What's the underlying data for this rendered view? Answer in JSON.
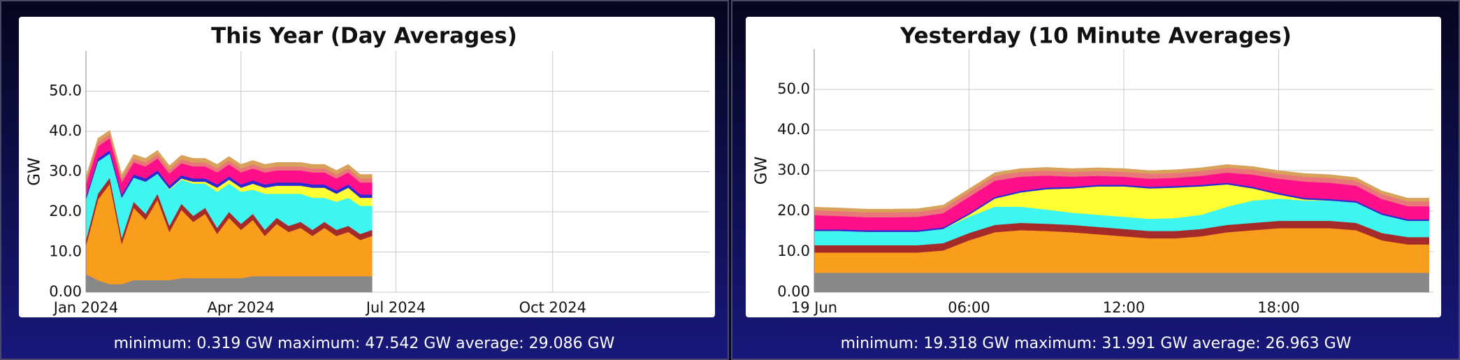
{
  "chart_data": [
    {
      "type": "area",
      "stacked": true,
      "title": "This Year (Day Averages)",
      "ylabel": "GW",
      "summary": "minimum: 0.319 GW maximum: 47.542 GW average: 29.086 GW",
      "x": [
        0,
        7,
        14,
        21,
        28,
        35,
        42,
        49,
        56,
        63,
        70,
        77,
        84,
        91,
        98,
        105,
        112,
        119,
        126,
        133,
        140,
        147,
        154,
        161,
        168
      ],
      "xlim": [
        0,
        366
      ],
      "xticks": [
        {
          "value": 0,
          "label": "Jan 2024"
        },
        {
          "value": 91,
          "label": "Apr 2024"
        },
        {
          "value": 182,
          "label": "Jul 2024"
        },
        {
          "value": 274,
          "label": "Oct 2024"
        }
      ],
      "ylim": [
        0,
        60
      ],
      "yticks": [
        {
          "value": 0,
          "label": "0.00"
        },
        {
          "value": 10,
          "label": "10.0"
        },
        {
          "value": 20,
          "label": "20.0"
        },
        {
          "value": 30,
          "label": "30.0"
        },
        {
          "value": 40,
          "label": "40.0"
        },
        {
          "value": 50,
          "label": "50.0"
        }
      ],
      "grid": true,
      "series": [
        {
          "color": "#888888",
          "values": [
            4.5,
            3,
            2,
            2,
            3,
            3,
            3,
            3,
            3.5,
            3.5,
            3.5,
            3.5,
            3.5,
            3.5,
            4,
            4,
            4,
            4,
            4,
            4,
            4,
            4,
            4,
            4,
            4
          ]
        },
        {
          "color": "#f99d1c",
          "values": [
            7,
            20,
            25,
            10,
            18,
            15,
            20,
            12,
            17,
            14,
            16,
            11,
            15,
            12,
            14,
            10,
            13,
            11,
            12,
            10,
            12,
            10,
            11,
            9,
            10
          ]
        },
        {
          "color": "#a52a2a",
          "values": [
            1.5,
            1.5,
            1.5,
            1.5,
            1.5,
            1.5,
            1.5,
            1.5,
            1.5,
            1.5,
            1.5,
            1.5,
            1.5,
            1.5,
            1.5,
            1.5,
            1.5,
            1.5,
            1.5,
            1.5,
            1.5,
            1.5,
            1.5,
            1.5,
            1.5
          ]
        },
        {
          "color": "#3ff5f0",
          "values": [
            10,
            8,
            6,
            10,
            6,
            8,
            5,
            9,
            6,
            8,
            6,
            9,
            7,
            8,
            6,
            9,
            6,
            8,
            7,
            8,
            6,
            7,
            7,
            7,
            6
          ]
        },
        {
          "color": "#ffff33",
          "values": [
            0,
            0,
            0,
            0,
            0,
            0,
            0,
            0.2,
            0.3,
            0.5,
            0.5,
            1,
            1,
            1,
            1.5,
            1.5,
            2,
            2,
            2,
            2.5,
            2.5,
            2,
            2.5,
            2,
            2
          ]
        },
        {
          "color": "#2b2bd6",
          "values": [
            0.8,
            0.8,
            0.8,
            0.8,
            0.8,
            0.8,
            0.8,
            0.8,
            0.8,
            0.8,
            0.8,
            0.8,
            0.8,
            0.8,
            0.8,
            0.8,
            0.8,
            0.8,
            0.8,
            0.8,
            0.8,
            0.8,
            0.8,
            0.8,
            0.8
          ]
        },
        {
          "color": "#ff0f8a",
          "values": [
            3,
            3,
            3,
            3,
            3,
            3,
            3,
            3,
            3,
            3,
            3,
            3,
            3,
            3,
            3,
            3,
            3,
            3,
            3,
            3,
            3,
            3,
            3,
            3,
            3
          ]
        },
        {
          "color": "#e8767a",
          "values": [
            1,
            1,
            1,
            1,
            1,
            1,
            1,
            1,
            1,
            1,
            1,
            1,
            1,
            1,
            1,
            1,
            1,
            1,
            1,
            1,
            1,
            1,
            1,
            1,
            1
          ]
        },
        {
          "color": "#d9a25b",
          "values": [
            1,
            1,
            1,
            1,
            1,
            1,
            1,
            1,
            1,
            1,
            1,
            1,
            1,
            1,
            1,
            1,
            1,
            1,
            1,
            1,
            1,
            1,
            1,
            1,
            1
          ]
        }
      ]
    },
    {
      "type": "area",
      "stacked": true,
      "title": "Yesterday (10 Minute Averages)",
      "ylabel": "GW",
      "summary": "minimum: 19.318 GW maximum: 31.991 GW average: 26.963 GW",
      "x": [
        0,
        1,
        2,
        3,
        4,
        5,
        6,
        7,
        8,
        9,
        10,
        11,
        12,
        13,
        14,
        15,
        16,
        17,
        18,
        19,
        20,
        21,
        22,
        23,
        23.83
      ],
      "xlim": [
        0,
        24
      ],
      "xticks": [
        {
          "value": 0,
          "label": "19 Jun"
        },
        {
          "value": 6,
          "label": "06:00"
        },
        {
          "value": 12,
          "label": "12:00"
        },
        {
          "value": 18,
          "label": "18:00"
        }
      ],
      "ylim": [
        0,
        60
      ],
      "yticks": [
        {
          "value": 0,
          "label": "0.00"
        },
        {
          "value": 10,
          "label": "10.0"
        },
        {
          "value": 20,
          "label": "20.0"
        },
        {
          "value": 30,
          "label": "30.0"
        },
        {
          "value": 40,
          "label": "40.0"
        },
        {
          "value": 50,
          "label": "50.0"
        }
      ],
      "grid": true,
      "series": [
        {
          "color": "#888888",
          "values": [
            4.8,
            4.8,
            4.8,
            4.8,
            4.8,
            4.8,
            4.8,
            4.8,
            4.8,
            4.8,
            4.8,
            4.8,
            4.8,
            4.8,
            4.8,
            4.8,
            4.8,
            4.8,
            4.8,
            4.8,
            4.8,
            4.8,
            4.8,
            4.8,
            4.8
          ]
        },
        {
          "color": "#f99d1c",
          "values": [
            5,
            5,
            5,
            5,
            5,
            5.5,
            8,
            10,
            10.5,
            10.3,
            10,
            9.5,
            9,
            8.5,
            8.5,
            9,
            10,
            10.5,
            11,
            11,
            11,
            10.5,
            8,
            7,
            7
          ]
        },
        {
          "color": "#a52a2a",
          "values": [
            1.8,
            1.8,
            1.8,
            1.8,
            1.8,
            1.8,
            1.8,
            1.8,
            1.8,
            1.8,
            1.8,
            1.8,
            1.8,
            1.8,
            1.8,
            1.8,
            1.8,
            1.8,
            1.8,
            1.8,
            1.8,
            1.8,
            1.8,
            1.8,
            1.8
          ]
        },
        {
          "color": "#3ff5f0",
          "values": [
            3.5,
            3.5,
            3.3,
            3.3,
            3.3,
            3.5,
            4,
            4.5,
            4,
            3.5,
            3,
            3,
            3,
            3,
            3.2,
            3.5,
            4.5,
            5.5,
            5.5,
            5,
            5,
            5,
            4.5,
            4,
            4
          ]
        },
        {
          "color": "#ffff33",
          "values": [
            0,
            0,
            0,
            0,
            0,
            0,
            0.5,
            2,
            3.5,
            5,
            6,
            7,
            7.5,
            7.5,
            7.5,
            7,
            5.5,
            3,
            1,
            0.3,
            0,
            0,
            0,
            0,
            0
          ]
        },
        {
          "color": "#2b2bd6",
          "values": [
            0.4,
            0.4,
            0.4,
            0.4,
            0.4,
            0.4,
            0.4,
            0.4,
            0.4,
            0.4,
            0.4,
            0.4,
            0.4,
            0.4,
            0.4,
            0.4,
            0.4,
            0.4,
            0.4,
            0.4,
            0.4,
            0.4,
            0.4,
            0.4,
            0.4
          ]
        },
        {
          "color": "#ff0f8a",
          "values": [
            3.5,
            3.3,
            3.2,
            3.2,
            3.3,
            3.5,
            4,
            4,
            3.5,
            3,
            2.5,
            2.2,
            2,
            2,
            2,
            2.2,
            2.5,
            3,
            3.5,
            4,
            4,
            3.8,
            3.5,
            3.2,
            3.2
          ]
        },
        {
          "color": "#e8767a",
          "values": [
            1.2,
            1.2,
            1.2,
            1.2,
            1.2,
            1.2,
            1.2,
            1.2,
            1.2,
            1.2,
            1.2,
            1.2,
            1.2,
            1.2,
            1.2,
            1.2,
            1.2,
            1.2,
            1.2,
            1.2,
            1.2,
            1.2,
            1.2,
            1.2,
            1.2
          ]
        },
        {
          "color": "#d9a25b",
          "values": [
            0.8,
            0.8,
            0.8,
            0.8,
            0.8,
            0.8,
            0.8,
            0.8,
            0.8,
            0.8,
            0.8,
            0.8,
            0.8,
            0.8,
            0.8,
            0.8,
            0.8,
            0.8,
            0.8,
            0.8,
            0.8,
            0.8,
            0.8,
            0.8,
            0.8
          ]
        }
      ]
    }
  ]
}
